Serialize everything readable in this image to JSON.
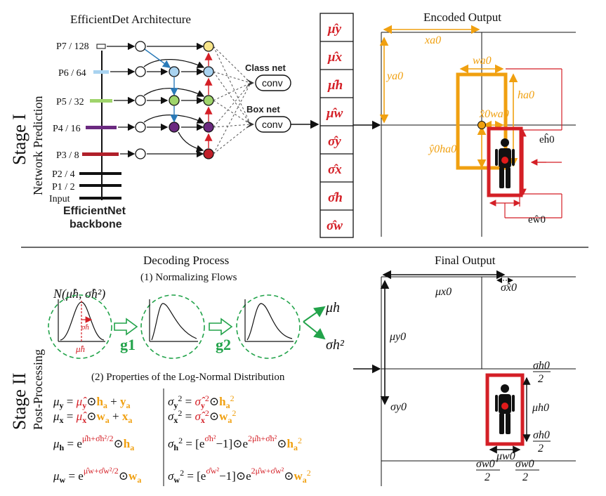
{
  "colors": {
    "red": "#d41f26",
    "orange": "#f0a010",
    "green": "#22a34a",
    "blue": "#2a7ab8",
    "purple": "#6b2a80"
  },
  "stage1": {
    "label": "Stage I",
    "sublabel": "Network Prediction",
    "arch_title": "EfficientDet Architecture",
    "levels": [
      "P7 / 128",
      "P6 / 64",
      "P5 / 32",
      "P4 / 16",
      "P3 / 8",
      "P2 / 4",
      "P1 / 2",
      "Input"
    ],
    "backbone_line1": "EfficientNet",
    "backbone_line2": "backbone",
    "class_net": "Class net",
    "box_net": "Box net",
    "conv": "conv",
    "outputs_mu": [
      "μ̂y",
      "μ̂x",
      "μ̂h",
      "μ̂w"
    ],
    "outputs_sigma": [
      "σ̂y",
      "σ̂x",
      "σ̂h",
      "σ̂w"
    ],
    "encoded_title": "Encoded Output",
    "enc_labels": {
      "xa": "xa0",
      "ya": "ya0",
      "wa": "wa0",
      "ha": "ha0",
      "xw": "x̂0wa0",
      "yh": "ŷ0ha0",
      "eh": "eĥ0",
      "ew": "eŵ0"
    }
  },
  "stage2": {
    "label": "Stage II",
    "sublabel": "Post-Processing",
    "decoding_title": "Decoding Process",
    "step1": "(1) Normalizing Flows",
    "step2": "(2) Properties of the Log-Normal Distribution",
    "normal": "N(μ̂h, σ̂h²)",
    "g1": "g1",
    "g2": "g2",
    "mu_h_out": "μh",
    "sigma_h_out": "σh²",
    "final_title": "Final Output",
    "final_labels": {
      "mux": "μx0",
      "sx": "σ̂x0",
      "muy": "μy0",
      "sy": "σy0",
      "muh": "μh0",
      "muw": "μw0",
      "sh": "σh0",
      "sw": "σw0",
      "two": "2"
    }
  }
}
